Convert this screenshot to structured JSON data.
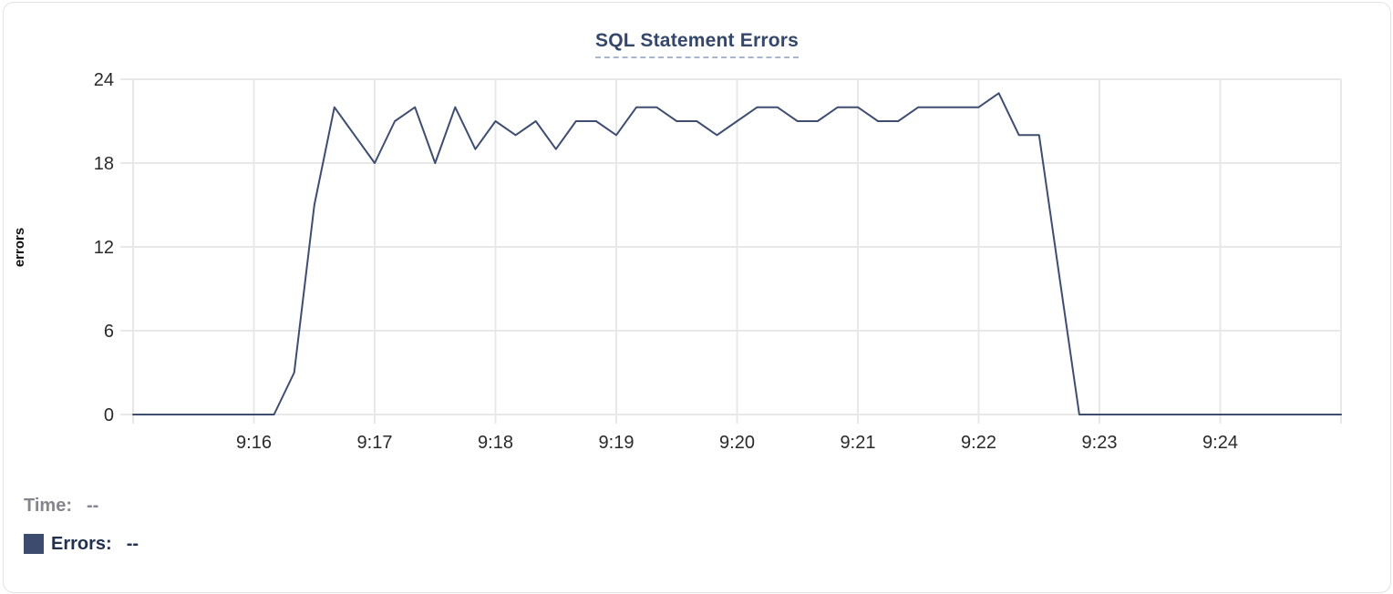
{
  "page": {
    "title": "SQL Statement Errors"
  },
  "ylabel": "errors",
  "legend": {
    "time_label": "Time:",
    "time_value": "--",
    "errors_label": "Errors:",
    "errors_value": "--"
  },
  "colors": {
    "line": "#3e4d70",
    "title": "#35476b",
    "title_underline": "#a9b5cf",
    "grid": "#e8e8e8",
    "tick": "#dcdcdc",
    "axis_text": "#2a2a2a",
    "legend_time_text": "#85868d",
    "legend_errors_text": "#233150",
    "swatch": "#3d4c6e"
  },
  "chart_data": {
    "type": "line",
    "title": "SQL Statement Errors",
    "xlabel": "",
    "ylabel": "errors",
    "ylim": [
      0,
      24
    ],
    "yticks": [
      0,
      6,
      12,
      18,
      24
    ],
    "xtick_labels": [
      "9:16",
      "9:17",
      "9:18",
      "9:19",
      "9:20",
      "9:21",
      "9:22",
      "9:23",
      "9:24"
    ],
    "x_range": [
      "9:15:00",
      "9:25:00"
    ],
    "interval_seconds": 10,
    "grid": true,
    "legend_position": "bottom-left",
    "series": [
      {
        "name": "Errors",
        "x": [
          "9:15:00",
          "9:15:10",
          "9:15:20",
          "9:15:30",
          "9:15:40",
          "9:15:50",
          "9:16:00",
          "9:16:10",
          "9:16:20",
          "9:16:30",
          "9:16:40",
          "9:16:50",
          "9:17:00",
          "9:17:10",
          "9:17:20",
          "9:17:30",
          "9:17:40",
          "9:17:50",
          "9:18:00",
          "9:18:10",
          "9:18:20",
          "9:18:30",
          "9:18:40",
          "9:18:50",
          "9:19:00",
          "9:19:10",
          "9:19:20",
          "9:19:30",
          "9:19:40",
          "9:19:50",
          "9:20:00",
          "9:20:10",
          "9:20:20",
          "9:20:30",
          "9:20:40",
          "9:20:50",
          "9:21:00",
          "9:21:10",
          "9:21:20",
          "9:21:30",
          "9:21:40",
          "9:21:50",
          "9:22:00",
          "9:22:10",
          "9:22:20",
          "9:22:30",
          "9:22:40",
          "9:22:50",
          "9:23:00",
          "9:23:10",
          "9:23:20",
          "9:23:30",
          "9:23:40",
          "9:23:50",
          "9:24:00",
          "9:24:10",
          "9:24:20",
          "9:24:30",
          "9:24:40",
          "9:24:50",
          "9:25:00"
        ],
        "values": [
          0,
          0,
          0,
          0,
          0,
          0,
          0,
          0,
          3,
          15,
          22,
          20,
          18,
          21,
          22,
          18,
          22,
          19,
          21,
          20,
          21,
          19,
          21,
          21,
          20,
          22,
          22,
          21,
          21,
          20,
          21,
          22,
          22,
          21,
          21,
          22,
          22,
          21,
          21,
          22,
          22,
          22,
          22,
          23,
          20,
          20,
          10,
          0,
          0,
          0,
          0,
          0,
          0,
          0,
          0,
          0,
          0,
          0,
          0,
          0,
          0
        ]
      }
    ]
  }
}
